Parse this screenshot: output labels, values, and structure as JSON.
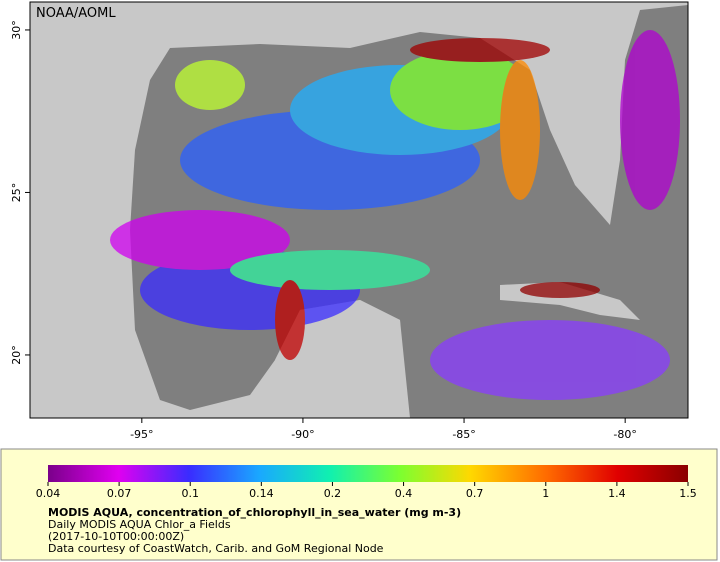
{
  "header": {
    "source": "NOAA/AOML"
  },
  "map": {
    "xlim": [
      -98.47,
      -78.05
    ],
    "ylim": [
      18.06,
      30.86
    ],
    "xticks": [
      {
        "value": -95,
        "label": "-95°"
      },
      {
        "value": -90,
        "label": "-90°"
      },
      {
        "value": -85,
        "label": "-85°"
      },
      {
        "value": -80,
        "label": "-80°"
      }
    ],
    "yticks": [
      {
        "value": 20,
        "label": "20°"
      },
      {
        "value": 25,
        "label": "25°"
      },
      {
        "value": 30,
        "label": "30°"
      }
    ]
  },
  "colorbar": {
    "ticks": [
      0.04,
      0.07,
      0.1,
      0.14,
      0.2,
      0.4,
      0.7,
      1,
      1.4,
      1.5
    ]
  },
  "caption": {
    "title": "MODIS AQUA, concentration_of_chlorophyll_in_sea_water (mg m-3)",
    "lines": [
      "Daily MODIS AQUA Chlor_a Fields",
      "(2017-10-10T00:00:00Z)",
      "Data courtesy of CoastWatch, Carib. and GoM Regional Node"
    ]
  }
}
